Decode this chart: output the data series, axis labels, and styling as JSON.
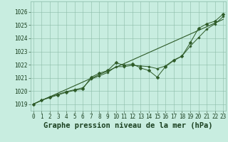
{
  "title": "Graphe pression niveau de la mer (hPa)",
  "x_ticks": [
    0,
    1,
    2,
    3,
    4,
    5,
    6,
    7,
    8,
    9,
    10,
    11,
    12,
    13,
    14,
    15,
    16,
    17,
    18,
    19,
    20,
    21,
    22,
    23
  ],
  "xlim": [
    -0.3,
    23.3
  ],
  "ylim": [
    1018.5,
    1026.8
  ],
  "y_ticks": [
    1019,
    1020,
    1021,
    1022,
    1023,
    1024,
    1025,
    1026
  ],
  "background_color": "#c8ede0",
  "grid_color": "#8bbba8",
  "line_color": "#2d5a27",
  "marker_color": "#2d5a27",
  "title_color": "#1a4020",
  "series": {
    "trend": [
      1019.0,
      1019.28,
      1019.56,
      1019.84,
      1020.12,
      1020.4,
      1020.68,
      1020.96,
      1021.24,
      1021.52,
      1021.8,
      1022.08,
      1022.36,
      1022.64,
      1022.92,
      1023.2,
      1023.48,
      1023.76,
      1024.04,
      1024.32,
      1024.6,
      1024.88,
      1025.16,
      1025.44
    ],
    "smooth": [
      1019.0,
      1019.3,
      1019.55,
      1019.75,
      1019.95,
      1020.1,
      1020.25,
      1020.9,
      1021.15,
      1021.4,
      1021.85,
      1021.85,
      1021.95,
      1021.9,
      1021.85,
      1021.7,
      1021.9,
      1022.35,
      1022.65,
      1023.4,
      1024.05,
      1024.7,
      1025.1,
      1025.65
    ],
    "jagged": [
      1019.0,
      1019.3,
      1019.5,
      1019.7,
      1019.9,
      1020.05,
      1020.15,
      1021.05,
      1021.35,
      1021.55,
      1022.15,
      1021.95,
      1022.05,
      1021.75,
      1021.55,
      1021.05,
      1021.85,
      1022.3,
      1022.65,
      1023.65,
      1024.75,
      1025.1,
      1025.3,
      1025.85
    ]
  },
  "title_fontsize": 7.5,
  "tick_fontsize": 5.5
}
